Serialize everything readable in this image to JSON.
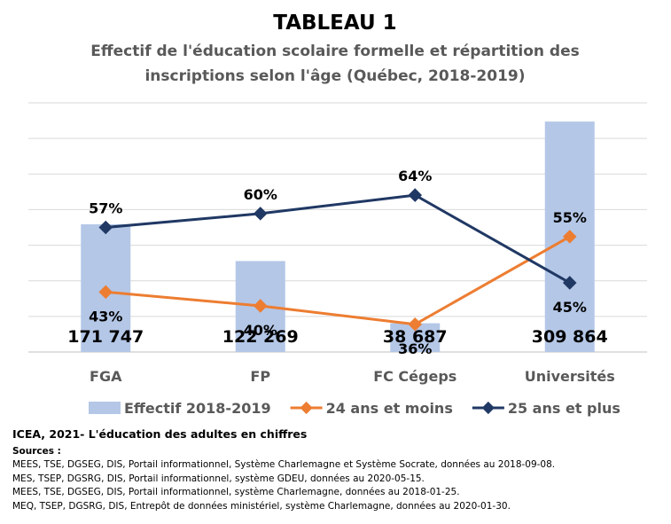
{
  "chart_data": {
    "type": "bar",
    "title": "TABLEAU 1",
    "subtitle_lines": [
      "Effectif de l'éducation scolaire formelle et répartition des",
      "inscriptions selon l'âge (Québec, 2018-2019)"
    ],
    "categories": [
      "FGA",
      "FP",
      "FC Cégeps",
      "Universités"
    ],
    "series": [
      {
        "name": "Effectif 2018-2019",
        "kind": "bar",
        "color": "#b4c7e7",
        "values": [
          171747,
          122269,
          38687,
          309864
        ],
        "labels": [
          "171 747",
          "122 269",
          "38 687",
          "309 864"
        ]
      },
      {
        "name": "24 ans et moins",
        "kind": "line",
        "color": "#ed7d31",
        "values": [
          43,
          40,
          36,
          55
        ],
        "labels": [
          "43%",
          "40%",
          "36%",
          "55%"
        ]
      },
      {
        "name": "25 ans et plus",
        "kind": "line",
        "color": "#203864",
        "values": [
          57,
          60,
          64,
          45
        ],
        "labels": [
          "57%",
          "60%",
          "64%",
          "45%"
        ]
      }
    ],
    "grid": true,
    "legend_position": "bottom"
  },
  "footer": {
    "citation": "ICEA, 2021- L'éducation des adultes en chiffres",
    "sources_label": "Sources :",
    "sources": [
      "MEES,  TSE, DGSEG, DIS, Portail informationnel,  Système Charlemagne  et Système Socrate, données au 2018-09-08.",
      "MES, TSEP, DGSRG, DIS, Portail informationnel, système GDEU, données au 2020-05-15.",
      "MEES,  TSE, DGSEG, DIS, Portail informationnel, système Charlemagne, données au 2018-01-25.",
      "MEQ,  TSEP,  DGSRG, DIS, Entrepôt de données ministériel, système Charlemagne,  données au 2020-01-30."
    ]
  }
}
